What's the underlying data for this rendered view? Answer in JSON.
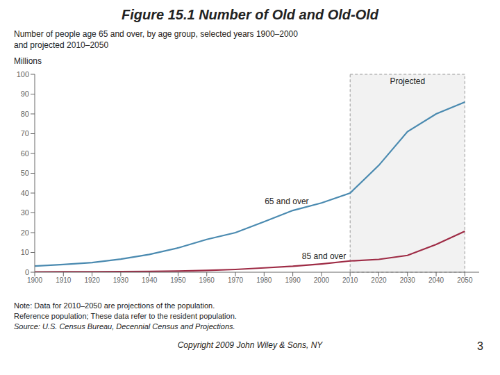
{
  "chart_data": {
    "type": "line",
    "title": "Figure 15.1 Number of Old and Old-Old",
    "subtitle": [
      "Number of people age 65 and over, by age group, selected years 1900–2000",
      "and projected 2010–2050"
    ],
    "y_label": "Millions",
    "x": [
      1900,
      1910,
      1920,
      1930,
      1940,
      1950,
      1960,
      1970,
      1980,
      1990,
      2000,
      2010,
      2020,
      2030,
      2040,
      2050
    ],
    "series": [
      {
        "name": "65 and over",
        "color": "#4a8ab0",
        "values": [
          3.1,
          3.9,
          4.9,
          6.6,
          9.0,
          12.3,
          16.6,
          20.0,
          25.5,
          31.2,
          35.0,
          40.0,
          54.0,
          71.0,
          80.0,
          86.0
        ]
      },
      {
        "name": "85 and over",
        "color": "#9e2b45",
        "values": [
          0.1,
          0.2,
          0.2,
          0.3,
          0.4,
          0.6,
          0.9,
          1.4,
          2.2,
          3.0,
          4.2,
          5.7,
          6.5,
          8.5,
          14.0,
          20.7
        ]
      }
    ],
    "xlim": [
      1900,
      2055
    ],
    "xticks": [
      1900,
      1910,
      1920,
      1930,
      1940,
      1950,
      1960,
      1970,
      1980,
      1990,
      2000,
      2010,
      2020,
      2030,
      2040,
      2050
    ],
    "ylim": [
      0,
      100
    ],
    "yticks": [
      0,
      10,
      20,
      30,
      40,
      50,
      60,
      70,
      80,
      90,
      100
    ],
    "grid": false,
    "annotations": [
      {
        "text": "65 and over",
        "x": 1979,
        "y": 36
      },
      {
        "text": "85 and over",
        "x": 1992,
        "y": 8.0
      },
      {
        "text": "Projected",
        "x": [
          2010,
          2050
        ]
      }
    ],
    "notes": [
      "Note: Data for 2010–2050 are projections of the population.",
      "Reference population; These data refer to the resident population.",
      "Source: U.S. Census Bureau, Decennial Census and Projections."
    ],
    "footer": "Copyright 2009 John Wiley & Sons, NY",
    "page_number": "3"
  }
}
